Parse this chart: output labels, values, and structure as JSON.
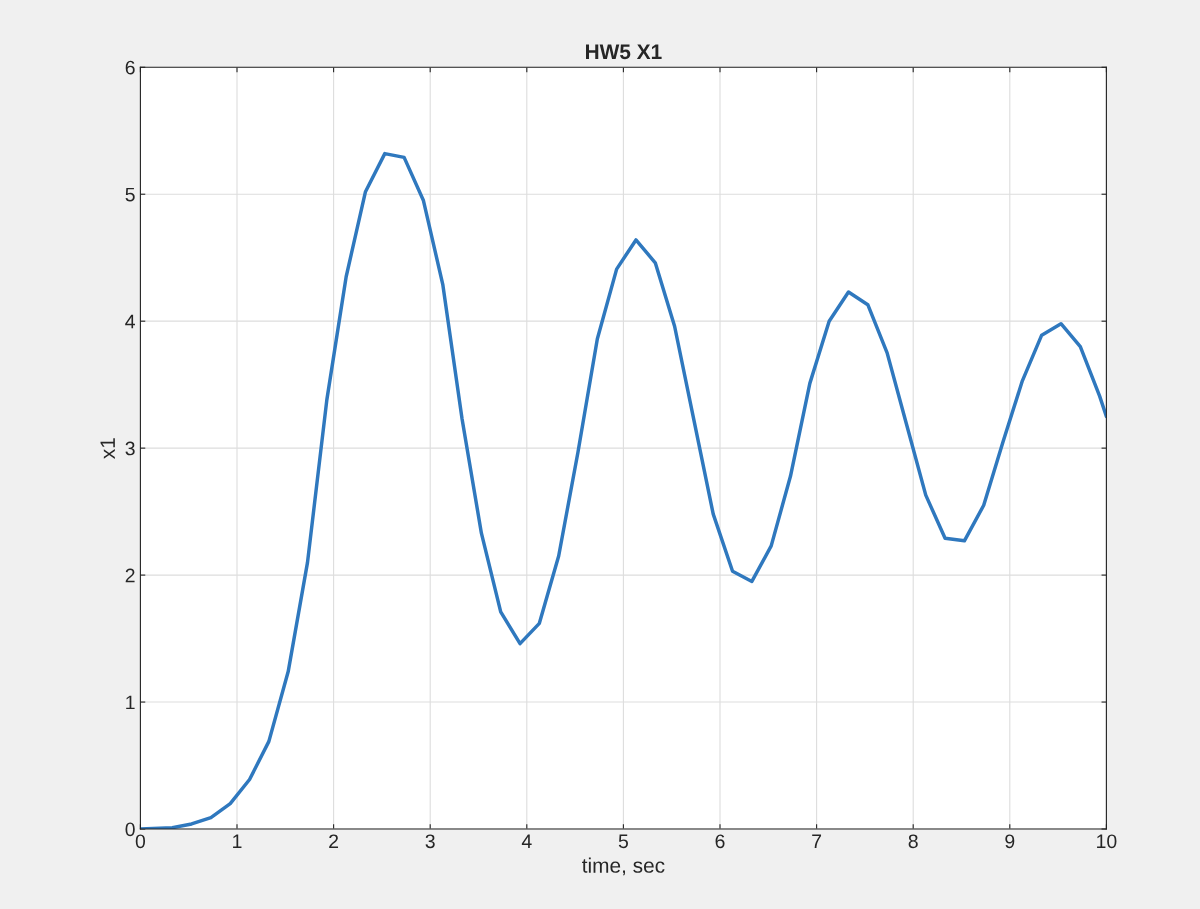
{
  "chart_data": {
    "type": "line",
    "title": "HW5 X1",
    "xlabel": "time, sec",
    "ylabel": "x1",
    "x": [
      0,
      0.33,
      0.53,
      0.73,
      0.93,
      1.13,
      1.33,
      1.53,
      1.73,
      1.93,
      2.13,
      2.33,
      2.53,
      2.73,
      2.93,
      3.13,
      3.33,
      3.53,
      3.73,
      3.93,
      4.13,
      4.33,
      4.53,
      4.73,
      4.93,
      5.13,
      5.33,
      5.53,
      5.73,
      5.93,
      6.13,
      6.33,
      6.53,
      6.73,
      6.93,
      7.13,
      7.33,
      7.53,
      7.73,
      7.93,
      8.13,
      8.33,
      8.53,
      8.73,
      8.93,
      9.13,
      9.33,
      9.53,
      9.73,
      9.93,
      10
    ],
    "series": [
      {
        "color": "#2f78be",
        "values": [
          0,
          0.01,
          0.04,
          0.09,
          0.2,
          0.39,
          0.69,
          1.24,
          2.1,
          3.38,
          4.35,
          5.02,
          5.32,
          5.29,
          4.95,
          4.29,
          3.23,
          2.33,
          1.71,
          1.46,
          1.62,
          2.15,
          2.97,
          3.86,
          4.41,
          4.64,
          4.46,
          3.96,
          3.22,
          2.48,
          2.03,
          1.95,
          2.23,
          2.78,
          3.51,
          4.0,
          4.23,
          4.13,
          3.75,
          3.19,
          2.63,
          2.29,
          2.27,
          2.55,
          3.05,
          3.53,
          3.89,
          3.98,
          3.8,
          3.41,
          3.25
        ]
      }
    ],
    "xlim": [
      0,
      10
    ],
    "ylim": [
      0,
      6
    ],
    "xticks": [
      0,
      1,
      2,
      3,
      4,
      5,
      6,
      7,
      8,
      9,
      10
    ],
    "yticks": [
      0,
      1,
      2,
      3,
      4,
      5,
      6
    ],
    "grid": true,
    "legend": false
  }
}
